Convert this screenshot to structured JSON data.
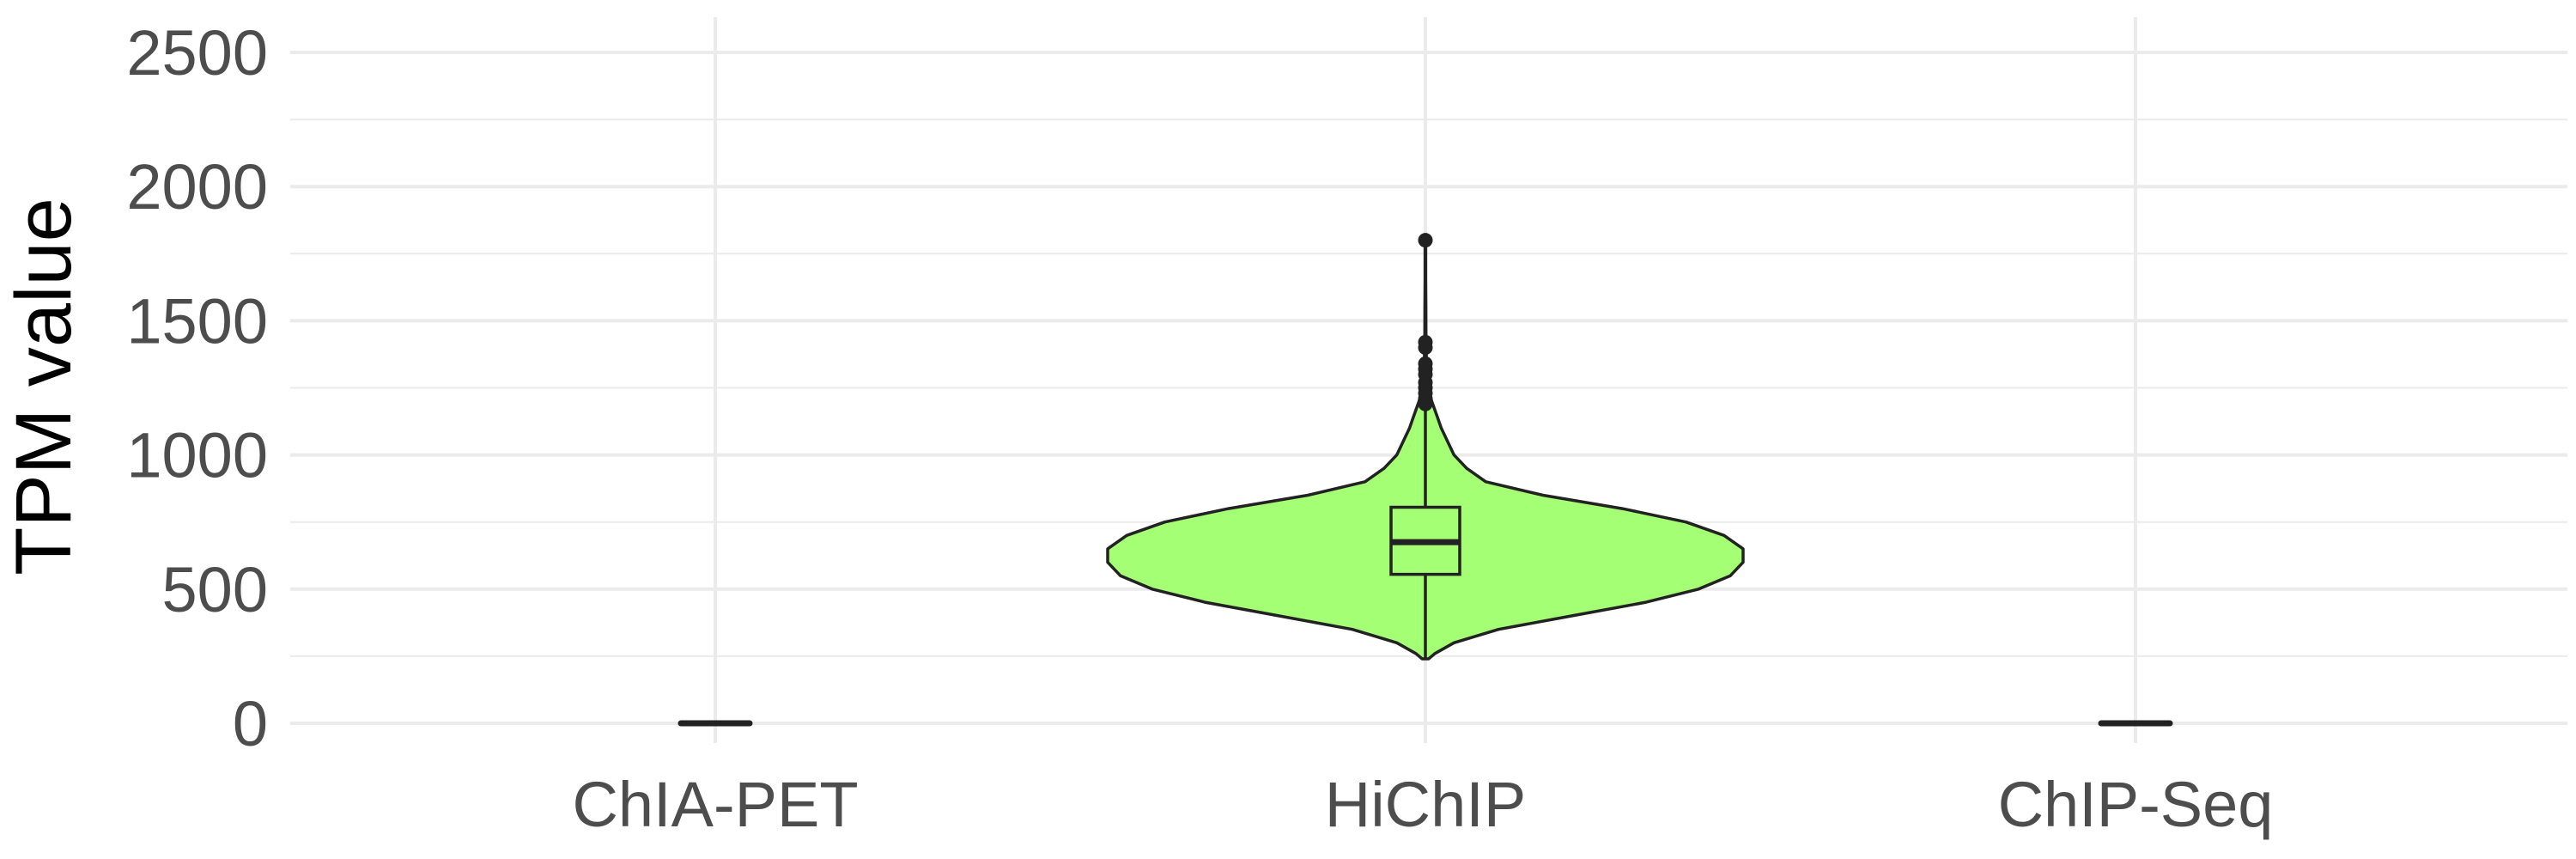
{
  "chart_data": {
    "type": "violin",
    "title": "",
    "xlabel": "",
    "ylabel": "TPM value",
    "ylim": [
      -80,
      2620
    ],
    "y_ticks": [
      0,
      500,
      1000,
      1500,
      2000,
      2500
    ],
    "y_tick_labels": [
      "0",
      "500",
      "1000",
      "1500",
      "2000",
      "2500"
    ],
    "y_minor_ticks": [
      250,
      750,
      1250,
      1750,
      2250
    ],
    "grid": true,
    "legend": "none",
    "categories": [
      "ChIA-PET",
      "HiChIP",
      "ChIP-Seq"
    ],
    "series": [
      {
        "category": "ChIA-PET",
        "fill": "#a4ff74",
        "box": {
          "q1": 0,
          "median": 0,
          "q3": 0,
          "whisker_low": 0,
          "whisker_high": 0
        },
        "outliers": [],
        "violin_profile": [
          [
            0,
            1
          ]
        ]
      },
      {
        "category": "HiChIP",
        "fill": "#a4ff74",
        "box": {
          "q1": 555,
          "median": 675,
          "q3": 805,
          "whisker_low": 240,
          "whisker_high": 1180
        },
        "outliers": [
          1190,
          1210,
          1230,
          1250,
          1270,
          1300,
          1320,
          1340,
          1400,
          1420,
          1800
        ],
        "violin_profile": [
          [
            240,
            0.01
          ],
          [
            260,
            0.03
          ],
          [
            300,
            0.09
          ],
          [
            350,
            0.23
          ],
          [
            400,
            0.46
          ],
          [
            450,
            0.69
          ],
          [
            500,
            0.86
          ],
          [
            550,
            0.96
          ],
          [
            600,
            1.0
          ],
          [
            650,
            1.0
          ],
          [
            700,
            0.94
          ],
          [
            750,
            0.82
          ],
          [
            800,
            0.62
          ],
          [
            850,
            0.37
          ],
          [
            900,
            0.19
          ],
          [
            950,
            0.13
          ],
          [
            1000,
            0.09
          ],
          [
            1050,
            0.07
          ],
          [
            1100,
            0.05
          ],
          [
            1150,
            0.035
          ],
          [
            1200,
            0.02
          ],
          [
            1250,
            0.008
          ],
          [
            1300,
            0.004
          ],
          [
            1350,
            0.003
          ],
          [
            1400,
            0.003
          ],
          [
            1450,
            0.002
          ],
          [
            1550,
            0.0015
          ],
          [
            1650,
            0.0012
          ],
          [
            1750,
            0.001
          ],
          [
            1800,
            0.001
          ]
        ]
      },
      {
        "category": "ChIP-Seq",
        "fill": "#a4ff74",
        "box": {
          "q1": 0,
          "median": 0,
          "q3": 0,
          "whisker_low": 0,
          "whisker_high": 0
        },
        "outliers": [],
        "violin_profile": [
          [
            0,
            1
          ]
        ]
      }
    ]
  },
  "style": {
    "grid_color": "#ebebeb",
    "line_color": "#222222",
    "violin_fill": "#a4ff74"
  }
}
